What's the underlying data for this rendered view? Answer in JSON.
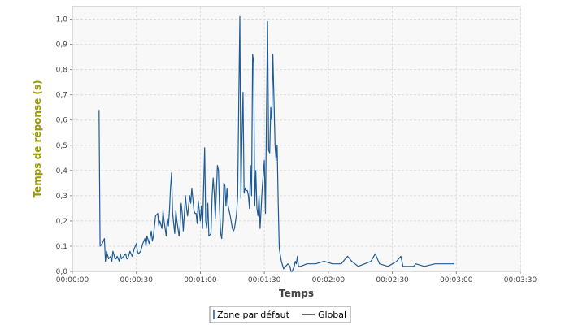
{
  "chart_data": {
    "type": "line",
    "title": "",
    "xlabel": "Temps",
    "ylabel": "Temps de réponse (s)",
    "x_unit": "elapsed time (hh:mm:ss)",
    "xlim": [
      0,
      210
    ],
    "ylim": [
      0,
      1.05
    ],
    "x_ticks": [
      {
        "value": 0,
        "label": "00:00:00"
      },
      {
        "value": 30,
        "label": "00:00:30"
      },
      {
        "value": 60,
        "label": "00:01:00"
      },
      {
        "value": 90,
        "label": "00:01:30"
      },
      {
        "value": 120,
        "label": "00:02:00"
      },
      {
        "value": 150,
        "label": "00:02:30"
      },
      {
        "value": 180,
        "label": "00:03:00"
      },
      {
        "value": 210,
        "label": "00:03:30"
      }
    ],
    "y_ticks": [
      {
        "value": 0.0,
        "label": "0,0"
      },
      {
        "value": 0.1,
        "label": "0,1"
      },
      {
        "value": 0.2,
        "label": "0,2"
      },
      {
        "value": 0.3,
        "label": "0,3"
      },
      {
        "value": 0.4,
        "label": "0,4"
      },
      {
        "value": 0.5,
        "label": "0,5"
      },
      {
        "value": 0.6,
        "label": "0,6"
      },
      {
        "value": 0.7,
        "label": "0,7"
      },
      {
        "value": 0.8,
        "label": "0,8"
      },
      {
        "value": 0.9,
        "label": "0,9"
      },
      {
        "value": 1.0,
        "label": "1,0"
      }
    ],
    "grid": true,
    "legend_position": "bottom-center",
    "series": [
      {
        "name": "Zone par défaut",
        "color": "#1f5a96",
        "points": [
          [
            12.5,
            0.64
          ],
          [
            13,
            0.1
          ],
          [
            14,
            0.11
          ],
          [
            15,
            0.13
          ],
          [
            15.5,
            0.04
          ],
          [
            16,
            0.08
          ],
          [
            17,
            0.05
          ],
          [
            18,
            0.06
          ],
          [
            18.5,
            0.04
          ],
          [
            19,
            0.08
          ],
          [
            20,
            0.05
          ],
          [
            20.5,
            0.05
          ],
          [
            21,
            0.06
          ],
          [
            22,
            0.04
          ],
          [
            22.5,
            0.07
          ],
          [
            23,
            0.05
          ],
          [
            24,
            0.06
          ],
          [
            25,
            0.07
          ],
          [
            25.5,
            0.05
          ],
          [
            26,
            0.05
          ],
          [
            27,
            0.08
          ],
          [
            27.5,
            0.07
          ],
          [
            28,
            0.06
          ],
          [
            29,
            0.09
          ],
          [
            30,
            0.11
          ],
          [
            30.5,
            0.08
          ],
          [
            31,
            0.07
          ],
          [
            32,
            0.08
          ],
          [
            33,
            0.11
          ],
          [
            34,
            0.13
          ],
          [
            34.5,
            0.1
          ],
          [
            35,
            0.14
          ],
          [
            36,
            0.11
          ],
          [
            37,
            0.16
          ],
          [
            37.5,
            0.12
          ],
          [
            38,
            0.14
          ],
          [
            39,
            0.22
          ],
          [
            40,
            0.23
          ],
          [
            40.5,
            0.18
          ],
          [
            41,
            0.2
          ],
          [
            42,
            0.17
          ],
          [
            42.5,
            0.24
          ],
          [
            43,
            0.2
          ],
          [
            44,
            0.14
          ],
          [
            44.5,
            0.21
          ],
          [
            45,
            0.18
          ],
          [
            45.5,
            0.24
          ],
          [
            46,
            0.33
          ],
          [
            46.5,
            0.39
          ],
          [
            47,
            0.23
          ],
          [
            48,
            0.15
          ],
          [
            48.5,
            0.24
          ],
          [
            49,
            0.2
          ],
          [
            50,
            0.14
          ],
          [
            50.5,
            0.18
          ],
          [
            51,
            0.27
          ],
          [
            51.5,
            0.23
          ],
          [
            52,
            0.16
          ],
          [
            53,
            0.3
          ],
          [
            53.5,
            0.25
          ],
          [
            54,
            0.22
          ],
          [
            55,
            0.3
          ],
          [
            55.5,
            0.27
          ],
          [
            56,
            0.33
          ],
          [
            57,
            0.24
          ],
          [
            57.5,
            0.23
          ],
          [
            58,
            0.23
          ],
          [
            58.5,
            0.19
          ],
          [
            59,
            0.28
          ],
          [
            60,
            0.2
          ],
          [
            60.5,
            0.26
          ],
          [
            61,
            0.17
          ],
          [
            62,
            0.49
          ],
          [
            62.5,
            0.2
          ],
          [
            63,
            0.17
          ],
          [
            63.5,
            0.27
          ],
          [
            64,
            0.14
          ],
          [
            65,
            0.15
          ],
          [
            65.5,
            0.3
          ],
          [
            66,
            0.37
          ],
          [
            66.5,
            0.31
          ],
          [
            67,
            0.21
          ],
          [
            68,
            0.42
          ],
          [
            68.5,
            0.4
          ],
          [
            69,
            0.25
          ],
          [
            69.5,
            0.15
          ],
          [
            70,
            0.13
          ],
          [
            70.5,
            0.2
          ],
          [
            71,
            0.35
          ],
          [
            71.5,
            0.34
          ],
          [
            72,
            0.26
          ],
          [
            72.5,
            0.33
          ],
          [
            73,
            0.26
          ],
          [
            74,
            0.22
          ],
          [
            75,
            0.17
          ],
          [
            75.5,
            0.16
          ],
          [
            76,
            0.17
          ],
          [
            77,
            0.23
          ],
          [
            77.5,
            0.3
          ],
          [
            78,
            0.68
          ],
          [
            78.5,
            1.01
          ],
          [
            79,
            0.29
          ],
          [
            79.5,
            0.53
          ],
          [
            80,
            0.71
          ],
          [
            80.5,
            0.31
          ],
          [
            81,
            0.33
          ],
          [
            81.5,
            0.32
          ],
          [
            82,
            0.32
          ],
          [
            82.5,
            0.3
          ],
          [
            83,
            0.25
          ],
          [
            83.5,
            0.42
          ],
          [
            84,
            0.3
          ],
          [
            84.5,
            0.86
          ],
          [
            85,
            0.83
          ],
          [
            85.5,
            0.26
          ],
          [
            86,
            0.4
          ],
          [
            86.5,
            0.25
          ],
          [
            87,
            0.22
          ],
          [
            87.5,
            0.3
          ],
          [
            88,
            0.17
          ],
          [
            88.5,
            0.25
          ],
          [
            89,
            0.33
          ],
          [
            90,
            0.44
          ],
          [
            90.5,
            0.23
          ],
          [
            91,
            0.63
          ],
          [
            91.5,
            0.99
          ],
          [
            92,
            0.48
          ],
          [
            92.5,
            0.47
          ],
          [
            93,
            0.65
          ],
          [
            93.5,
            0.6
          ],
          [
            94,
            0.86
          ],
          [
            94.5,
            0.68
          ],
          [
            95,
            0.5
          ],
          [
            95.5,
            0.44
          ],
          [
            96,
            0.5
          ],
          [
            96.5,
            0.27
          ],
          [
            97,
            0.09
          ],
          [
            98,
            0.04
          ],
          [
            99,
            0.01
          ],
          [
            100,
            0.02
          ],
          [
            101,
            0.03
          ],
          [
            102,
            0.02
          ],
          [
            102.5,
            0.0
          ],
          [
            103,
            0.0
          ],
          [
            104,
            0.02
          ],
          [
            104.5,
            0.04
          ],
          [
            105,
            0.03
          ],
          [
            105.5,
            0.06
          ],
          [
            106,
            0.02
          ],
          [
            107,
            0.02
          ],
          [
            110,
            0.03
          ],
          [
            114,
            0.03
          ],
          [
            118,
            0.04
          ],
          [
            122,
            0.03
          ],
          [
            126,
            0.03
          ],
          [
            129,
            0.06
          ],
          [
            131,
            0.04
          ],
          [
            134,
            0.02
          ],
          [
            140,
            0.04
          ],
          [
            142,
            0.07
          ],
          [
            144,
            0.03
          ],
          [
            148,
            0.02
          ],
          [
            152,
            0.04
          ],
          [
            154,
            0.06
          ],
          [
            155,
            0.02
          ],
          [
            160,
            0.02
          ],
          [
            161,
            0.03
          ],
          [
            165,
            0.02
          ],
          [
            170,
            0.03
          ],
          [
            175,
            0.03
          ],
          [
            178,
            0.03
          ],
          [
            179,
            0.03
          ]
        ]
      },
      {
        "name": "Global",
        "color": "#000000",
        "points": []
      }
    ]
  },
  "legend": {
    "items": [
      {
        "label": "Zone par défaut",
        "color": "#1f5a96"
      },
      {
        "label": "Global",
        "color": "#000000"
      }
    ]
  }
}
